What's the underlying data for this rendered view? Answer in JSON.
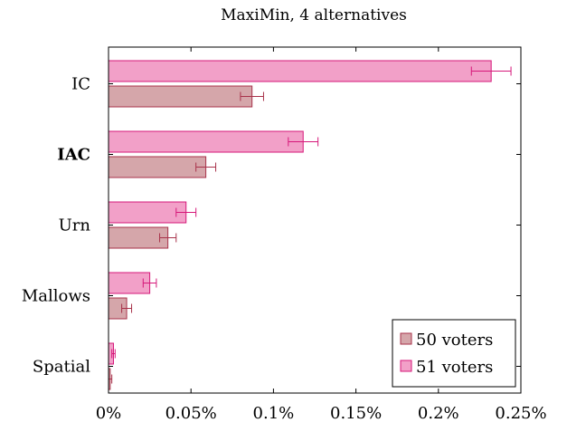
{
  "chart_data": {
    "type": "bar",
    "orientation": "horizontal",
    "title": "MaxiMin, 4 alternatives",
    "xlabel": "",
    "ylabel": "",
    "categories": [
      "IC",
      "IAC",
      "Urn",
      "Mallows",
      "Spatial"
    ],
    "bold_categories": [
      "IAC"
    ],
    "xlim": [
      0,
      0.25
    ],
    "x_ticks": [
      0,
      0.05,
      0.1,
      0.15,
      0.2,
      0.25
    ],
    "x_tick_labels": [
      "0%",
      "0.05%",
      "0.1%",
      "0.15%",
      "0.2%",
      "0.25%"
    ],
    "grid": false,
    "legend_position": "bottom-right",
    "series": [
      {
        "name": "50 voters",
        "fill": "#d5a6aa",
        "stroke": "#a8324a",
        "values": [
          0.087,
          0.059,
          0.036,
          0.011,
          0.001
        ],
        "errors": [
          0.007,
          0.006,
          0.005,
          0.003,
          0.001
        ]
      },
      {
        "name": "51 voters",
        "fill": "#f2a0c8",
        "stroke": "#d6187a",
        "values": [
          0.232,
          0.118,
          0.047,
          0.025,
          0.003
        ],
        "errors": [
          0.012,
          0.009,
          0.006,
          0.004,
          0.001
        ]
      }
    ]
  }
}
